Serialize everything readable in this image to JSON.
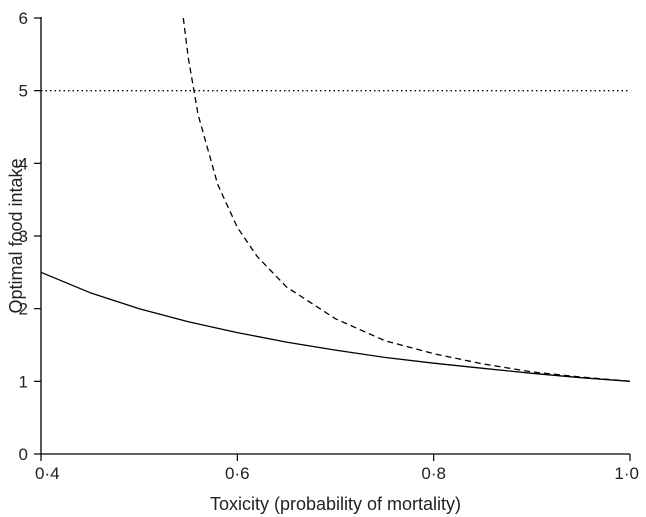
{
  "chart_data": {
    "type": "line",
    "title": "",
    "xlabel": "Toxicity (probability of mortality)",
    "ylabel": "Optimal food intake",
    "xlim": [
      0.4,
      1.0
    ],
    "ylim": [
      0,
      6
    ],
    "grid": false,
    "legend": "none",
    "x_ticks": [
      {
        "value": 0.4,
        "label": "0·4"
      },
      {
        "value": 0.6,
        "label": "0·6"
      },
      {
        "value": 0.8,
        "label": "0·8"
      },
      {
        "value": 1.0,
        "label": "1·0"
      }
    ],
    "y_ticks": [
      {
        "value": 0,
        "label": "0"
      },
      {
        "value": 1,
        "label": "1"
      },
      {
        "value": 2,
        "label": "2"
      },
      {
        "value": 3,
        "label": "3"
      },
      {
        "value": 4,
        "label": "4"
      },
      {
        "value": 5,
        "label": "5"
      },
      {
        "value": 6,
        "label": "6"
      }
    ],
    "series": [
      {
        "style": "solid",
        "color": "#000000",
        "x": [
          0.4,
          0.45,
          0.5,
          0.55,
          0.6,
          0.65,
          0.7,
          0.75,
          0.8,
          0.85,
          0.9,
          0.95,
          1.0
        ],
        "y": [
          2.5,
          2.22,
          2.0,
          1.82,
          1.67,
          1.54,
          1.43,
          1.33,
          1.25,
          1.18,
          1.11,
          1.05,
          1.0
        ]
      },
      {
        "style": "dashed",
        "color": "#000000",
        "x": [
          0.545,
          0.55,
          0.56,
          0.58,
          0.6,
          0.62,
          0.65,
          0.7,
          0.75,
          0.8,
          0.85,
          0.9,
          0.95,
          1.0
        ],
        "y": [
          6.0,
          5.45,
          4.67,
          3.71,
          3.12,
          2.72,
          2.3,
          1.86,
          1.56,
          1.38,
          1.24,
          1.13,
          1.06,
          1.0
        ]
      },
      {
        "style": "dotted",
        "color": "#000000",
        "x": [
          0.4,
          1.0
        ],
        "y": [
          5.0,
          5.0
        ]
      }
    ]
  }
}
